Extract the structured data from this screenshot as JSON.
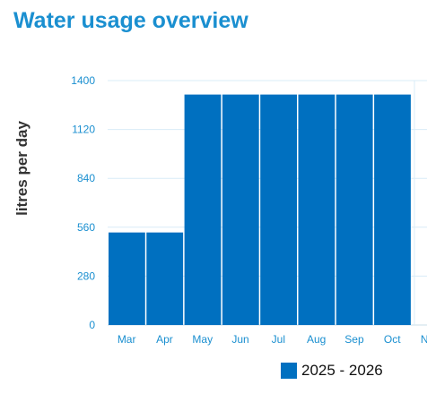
{
  "title": "Water usage overview",
  "colors": {
    "title": "#1a8fd0",
    "bar": "#0070c0",
    "tick": "#1a8fd0",
    "grid": "#d8ecf7"
  },
  "chart_data": {
    "type": "bar",
    "title": "Water usage overview",
    "xlabel": "",
    "ylabel": "litres per day",
    "ylim": [
      0,
      1400
    ],
    "yticks": [
      0,
      280,
      560,
      840,
      1120,
      1400
    ],
    "grid": true,
    "legend_position": "bottom",
    "categories": [
      "Mar",
      "Apr",
      "May",
      "Jun",
      "Jul",
      "Aug",
      "Sep",
      "Oct",
      "Nov"
    ],
    "series": [
      {
        "name": "2025 - 2026",
        "color": "#0070c0",
        "values": [
          530,
          530,
          1320,
          1320,
          1320,
          1320,
          1320,
          1320,
          null
        ]
      }
    ]
  }
}
